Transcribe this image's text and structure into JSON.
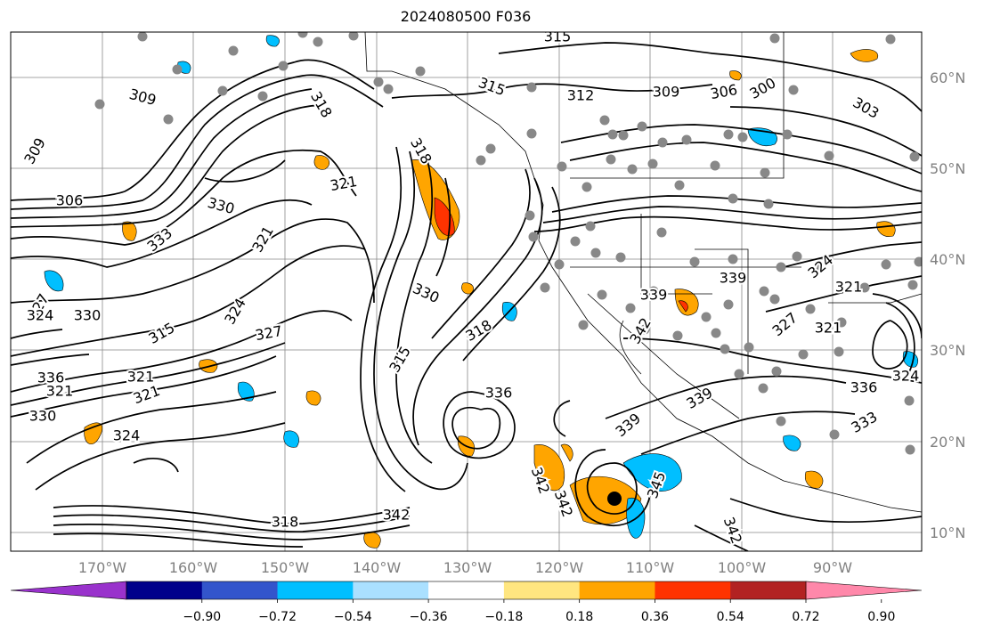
{
  "title": "2024080500 F036",
  "lat_labels": [
    "60°N",
    "50°N",
    "40°N",
    "30°N",
    "20°N",
    "10°N"
  ],
  "lon_labels": [
    "170°W",
    "160°W",
    "150°W",
    "140°W",
    "130°W",
    "120°W",
    "110°W",
    "100°W",
    "90°W"
  ],
  "contour_labels": [
    "315",
    "309",
    "312",
    "309",
    "306",
    "300",
    "303",
    "318",
    "315",
    "309",
    "306",
    "330",
    "321",
    "318",
    "321",
    "333",
    "327",
    "324",
    "330",
    "324",
    "327",
    "315",
    "330",
    "318",
    "315",
    "336",
    "321",
    "321",
    "321",
    "330",
    "324",
    "318",
    "342",
    "339",
    "342",
    "339",
    "342",
    "345",
    "342",
    "342",
    "336",
    "339",
    "333",
    "321",
    "327",
    "321",
    "324",
    "324",
    "339",
    "336"
  ],
  "colorbar": {
    "ticks": [
      "−0.90",
      "−0.72",
      "−0.54",
      "−0.36",
      "−0.18",
      "0.18",
      "0.36",
      "0.54",
      "0.72",
      "0.90"
    ],
    "colors": [
      "#9932cc",
      "#00008b",
      "#3355cc",
      "#00bfff",
      "#aae0ff",
      "#ffffff",
      "#ffe680",
      "#ffa500",
      "#ff3300",
      "#b22222",
      "#ff88aa"
    ]
  }
}
